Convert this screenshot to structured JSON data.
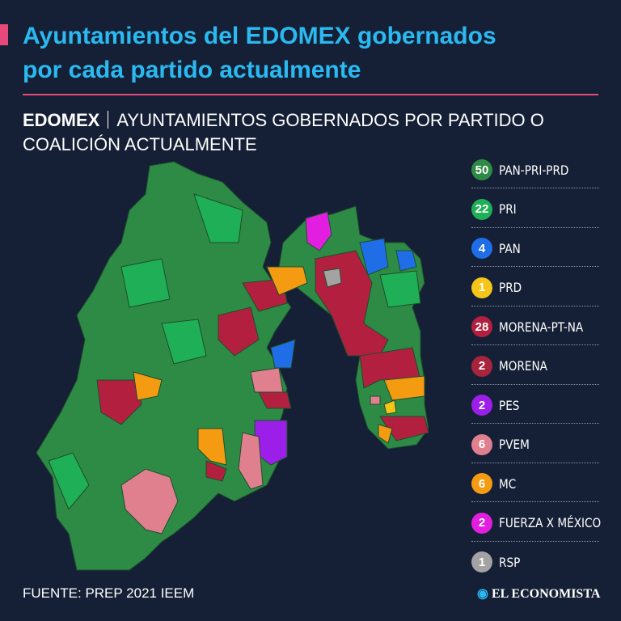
{
  "header": {
    "title_lines": [
      "Ayuntamientos del EDOMEX gobernados",
      "por cada partido actualmente"
    ]
  },
  "subtitle": {
    "label": "EDOMEX",
    "lines": [
      "AYUNTAMIENTOS GOBERNADOS POR PARTIDO O",
      "COALICIÓN ACTUALMENTE"
    ]
  },
  "legend": [
    {
      "count": 50,
      "label": "PAN-PRI-PRD",
      "color": "#2e8b45"
    },
    {
      "count": 22,
      "label": "PRI",
      "color": "#1faf56"
    },
    {
      "count": 4,
      "label": "PAN",
      "color": "#1f6ee8"
    },
    {
      "count": 1,
      "label": "PRD",
      "color": "#f5c518"
    },
    {
      "count": 28,
      "label": "MORENA-PT-NA",
      "color": "#b3203f"
    },
    {
      "count": 2,
      "label": "MORENA",
      "color": "#a8243e"
    },
    {
      "count": 2,
      "label": "PES",
      "color": "#9b1fe8"
    },
    {
      "count": 6,
      "label": "PVEM",
      "color": "#e0808f"
    },
    {
      "count": 6,
      "label": "MC",
      "color": "#f59b12"
    },
    {
      "count": 2,
      "label": "FUERZA X MÉXICO",
      "color": "#e21fe0"
    },
    {
      "count": 1,
      "label": "RSP",
      "color": "#a3a3a3"
    }
  ],
  "footer": {
    "source": "FUENTE: PREP 2021 IEEM",
    "brand": "EL ECONOMISTA"
  }
}
